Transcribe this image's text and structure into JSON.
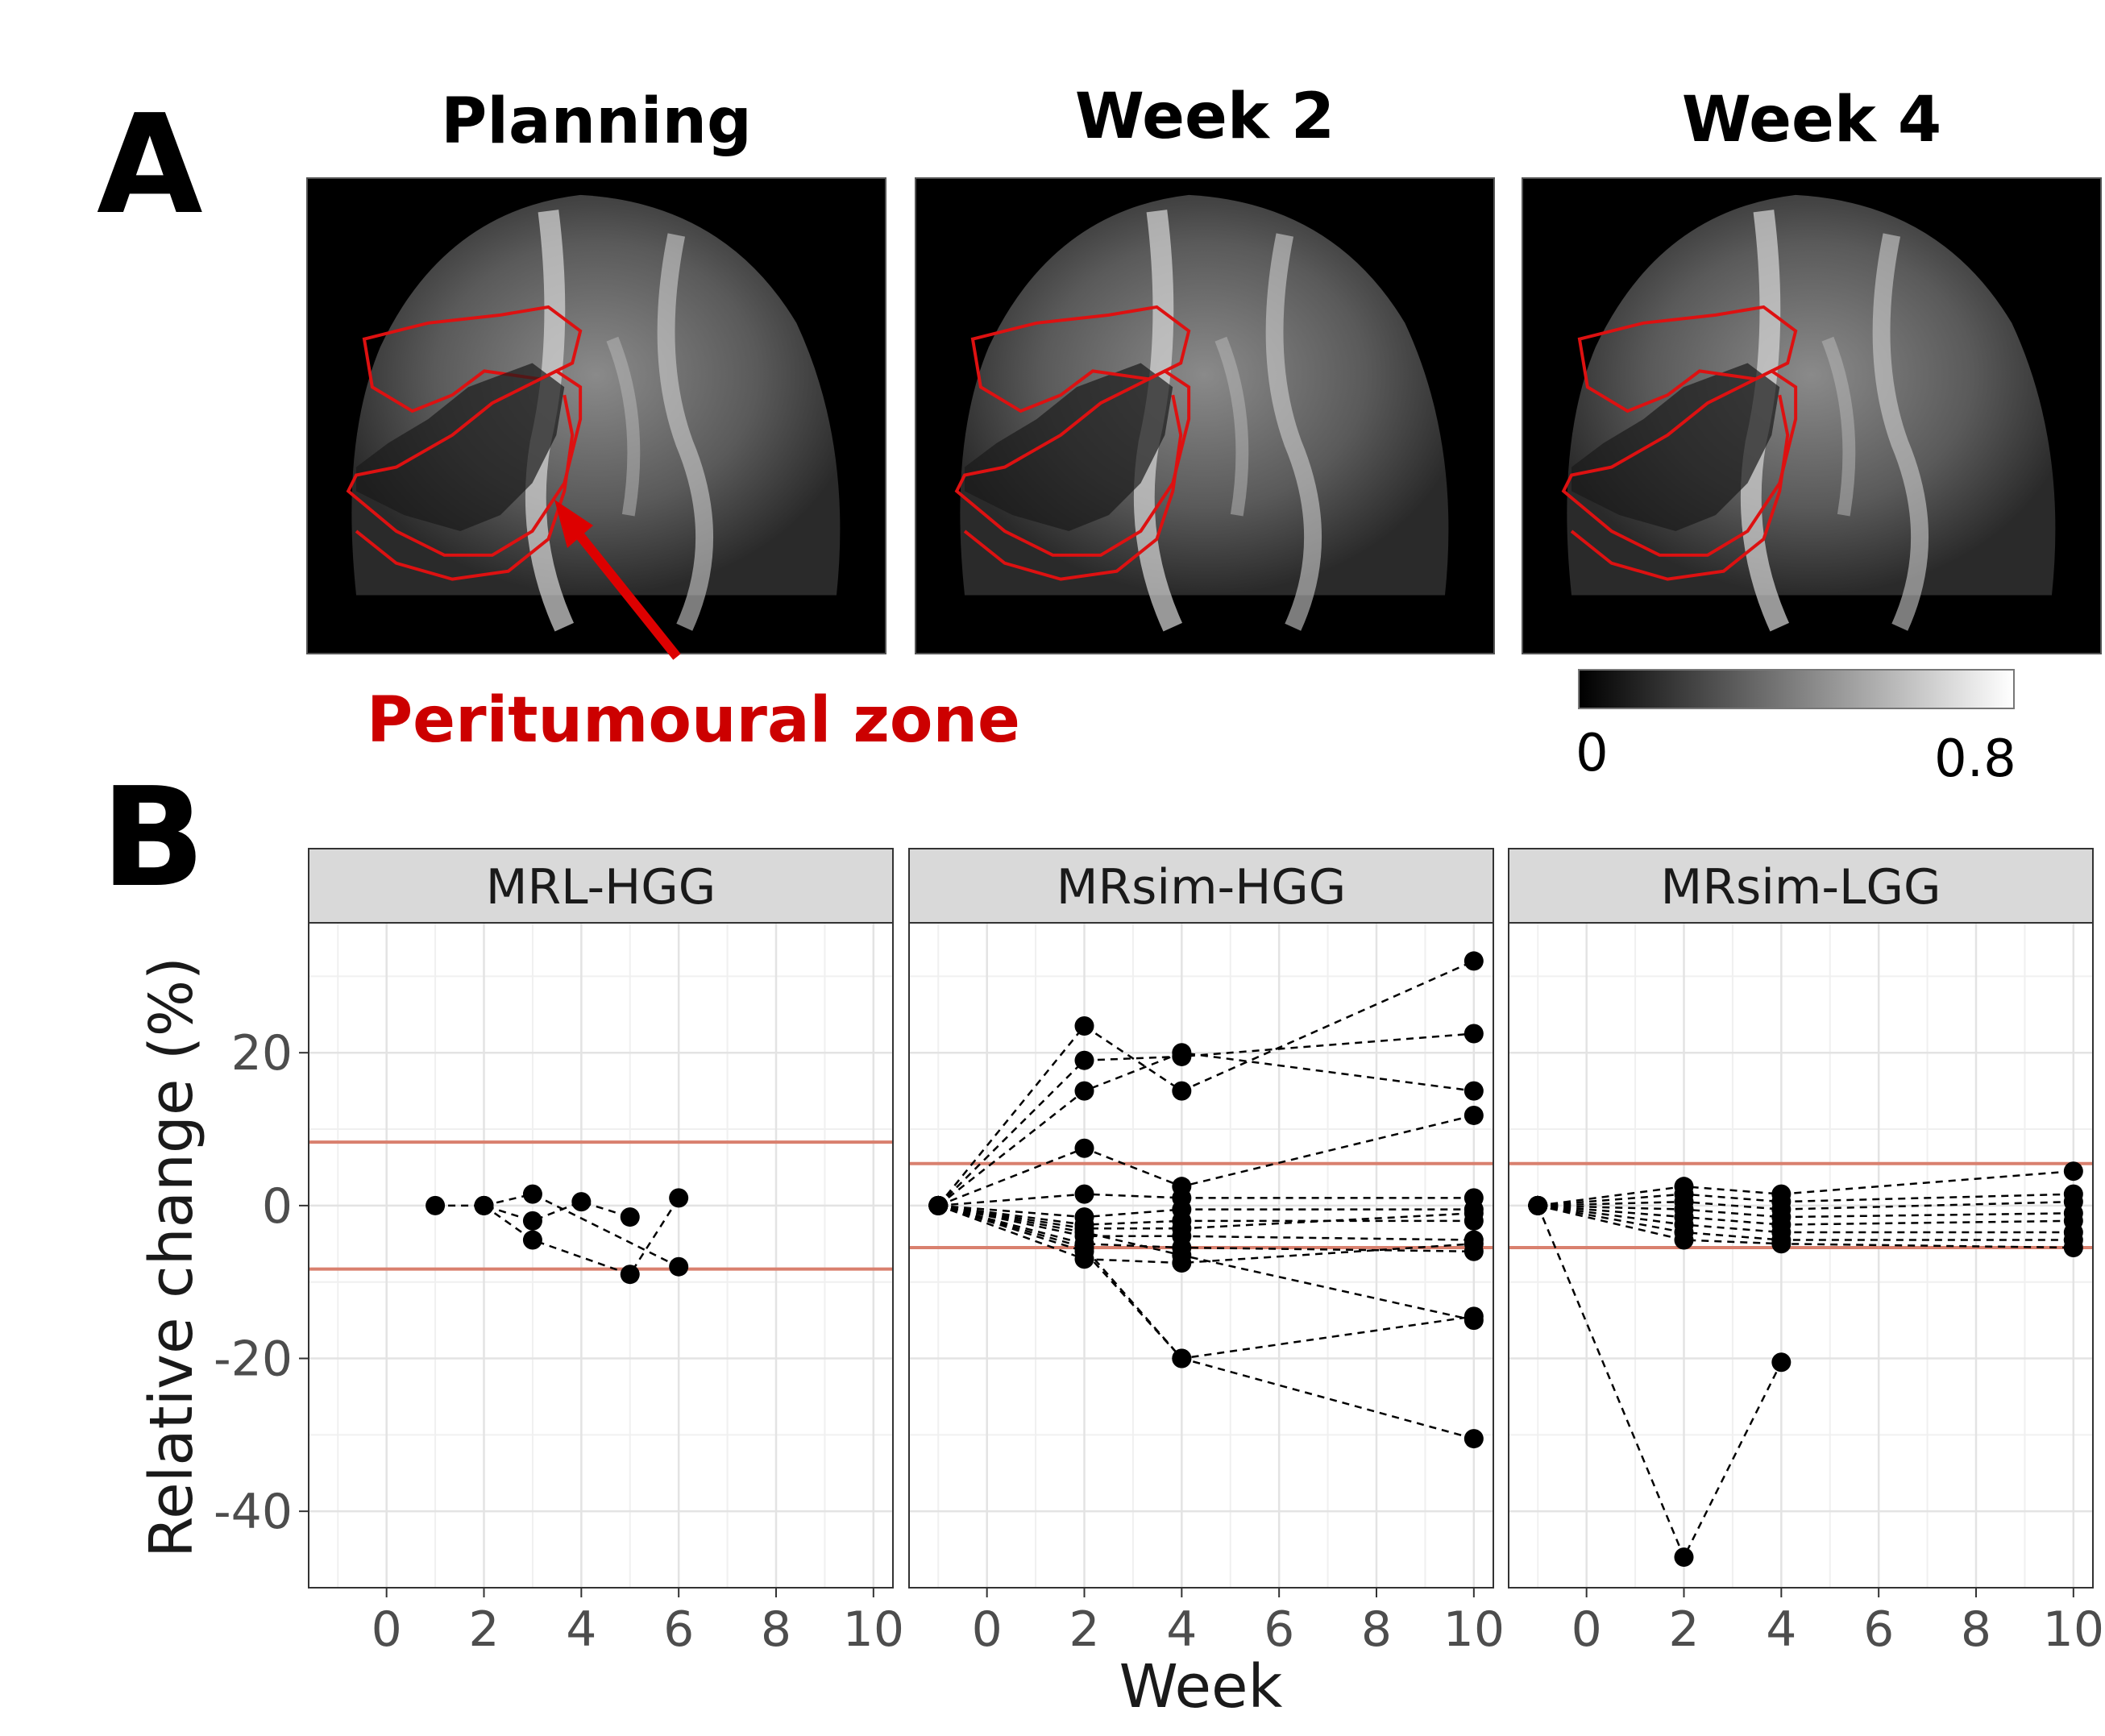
{
  "panel_a": {
    "letter": "A",
    "images": [
      {
        "title": "Planning"
      },
      {
        "title": "Week 2"
      },
      {
        "title": "Week 4"
      }
    ],
    "annotation": "Peritumoural zone",
    "colorbar": {
      "min_label": "0",
      "max_label": "0.8",
      "min": 0,
      "max": 0.8
    }
  },
  "panel_b": {
    "letter": "B",
    "xlabel": "Week",
    "ylabel": "Relative change (%)"
  },
  "colors": {
    "reference_line": "#d9806e",
    "points": "#000000",
    "strip": "#d9d9d9",
    "outline": "#cc0000"
  },
  "chart_data": [
    {
      "type": "scatter",
      "title": "MRL-HGG",
      "xlabel": "Week",
      "ylabel": "Relative change (%)",
      "xlim": [
        -1.6,
        10.4
      ],
      "ylim": [
        -50,
        37
      ],
      "xticks": [
        0,
        2,
        4,
        6,
        8,
        10
      ],
      "yticks": [
        20,
        0,
        -20,
        -40
      ],
      "reference_lines": [
        8.3,
        -8.3
      ],
      "grid": true,
      "series": [
        {
          "x": [
            1,
            2,
            3,
            4,
            5
          ],
          "y": [
            0,
            0,
            -2,
            0.5,
            -1.5
          ]
        },
        {
          "x": [
            2,
            3,
            5,
            6
          ],
          "y": [
            0,
            -4.5,
            -9,
            1
          ]
        },
        {
          "x": [
            2,
            3,
            6
          ],
          "y": [
            0,
            1.5,
            -8
          ]
        }
      ]
    },
    {
      "type": "scatter",
      "title": "MRsim-HGG",
      "xlabel": "Week",
      "ylabel": "Relative change (%)",
      "xlim": [
        -1.6,
        10.4
      ],
      "ylim": [
        -50,
        37
      ],
      "xticks": [
        0,
        2,
        4,
        6,
        8,
        10
      ],
      "yticks": [
        20,
        0,
        -20,
        -40
      ],
      "reference_lines": [
        5.5,
        -5.5
      ],
      "grid": true,
      "series": [
        {
          "x": [
            -1,
            2,
            4,
            10
          ],
          "y": [
            0,
            23.5,
            15,
            32
          ]
        },
        {
          "x": [
            -1,
            2,
            4,
            10
          ],
          "y": [
            0,
            19,
            19.5,
            22.5
          ]
        },
        {
          "x": [
            -1,
            2,
            4,
            10
          ],
          "y": [
            0,
            15,
            20,
            15
          ]
        },
        {
          "x": [
            -1,
            2,
            4,
            10
          ],
          "y": [
            0,
            7.5,
            2.5,
            11.8
          ]
        },
        {
          "x": [
            -1,
            2,
            4,
            10
          ],
          "y": [
            0,
            1.5,
            1,
            1
          ]
        },
        {
          "x": [
            -1,
            2,
            4,
            10
          ],
          "y": [
            0,
            -1.5,
            -0.5,
            -0.5
          ]
        },
        {
          "x": [
            -1,
            2,
            4,
            10
          ],
          "y": [
            0,
            -2.5,
            -2,
            -2
          ]
        },
        {
          "x": [
            -1,
            2,
            4,
            10
          ],
          "y": [
            0,
            -3,
            -3,
            -1
          ]
        },
        {
          "x": [
            -1,
            2,
            4,
            10
          ],
          "y": [
            0,
            -4,
            -4,
            -4.5
          ]
        },
        {
          "x": [
            -1,
            2,
            4,
            10
          ],
          "y": [
            0,
            -5,
            -5.5,
            -6
          ]
        },
        {
          "x": [
            -1,
            2,
            4,
            10
          ],
          "y": [
            0,
            -7,
            -7.5,
            -5
          ]
        },
        {
          "x": [
            -1,
            2,
            4,
            10
          ],
          "y": [
            0,
            -5.5,
            -20,
            -14.5
          ]
        },
        {
          "x": [
            -1,
            2,
            4,
            10
          ],
          "y": [
            0,
            -6,
            -20,
            -30.5
          ]
        },
        {
          "x": [
            -1,
            2,
            4,
            10
          ],
          "y": [
            0,
            -3.5,
            -6.5,
            -15
          ]
        }
      ]
    },
    {
      "type": "scatter",
      "title": "MRsim-LGG",
      "xlabel": "Week",
      "ylabel": "Relative change (%)",
      "xlim": [
        -1.6,
        10.4
      ],
      "ylim": [
        -50,
        37
      ],
      "xticks": [
        0,
        2,
        4,
        6,
        8,
        10
      ],
      "yticks": [
        20,
        0,
        -20,
        -40
      ],
      "reference_lines": [
        5.5,
        -5.5
      ],
      "grid": true,
      "series": [
        {
          "x": [
            -1,
            2,
            4,
            10
          ],
          "y": [
            0,
            2.5,
            1.5,
            4.5
          ]
        },
        {
          "x": [
            -1,
            2,
            4,
            10
          ],
          "y": [
            0,
            1.5,
            0.5,
            1.5
          ]
        },
        {
          "x": [
            -1,
            2,
            4,
            10
          ],
          "y": [
            0,
            0.5,
            -0.5,
            0.5
          ]
        },
        {
          "x": [
            -1,
            2,
            4,
            10
          ],
          "y": [
            0,
            -0.5,
            -1.5,
            -1
          ]
        },
        {
          "x": [
            -1,
            2,
            4,
            10
          ],
          "y": [
            0,
            -1.5,
            -2.5,
            -2
          ]
        },
        {
          "x": [
            -1,
            2,
            4,
            10
          ],
          "y": [
            0,
            -2.5,
            -3.5,
            -3.5
          ]
        },
        {
          "x": [
            -1,
            2,
            4,
            10
          ],
          "y": [
            0,
            -3.5,
            -4.5,
            -4.5
          ]
        },
        {
          "x": [
            -1,
            2,
            4,
            10
          ],
          "y": [
            0,
            -4.5,
            -5,
            -5.5
          ]
        },
        {
          "x": [
            -1,
            2,
            4
          ],
          "y": [
            0,
            -46,
            -20.5
          ]
        }
      ]
    }
  ]
}
